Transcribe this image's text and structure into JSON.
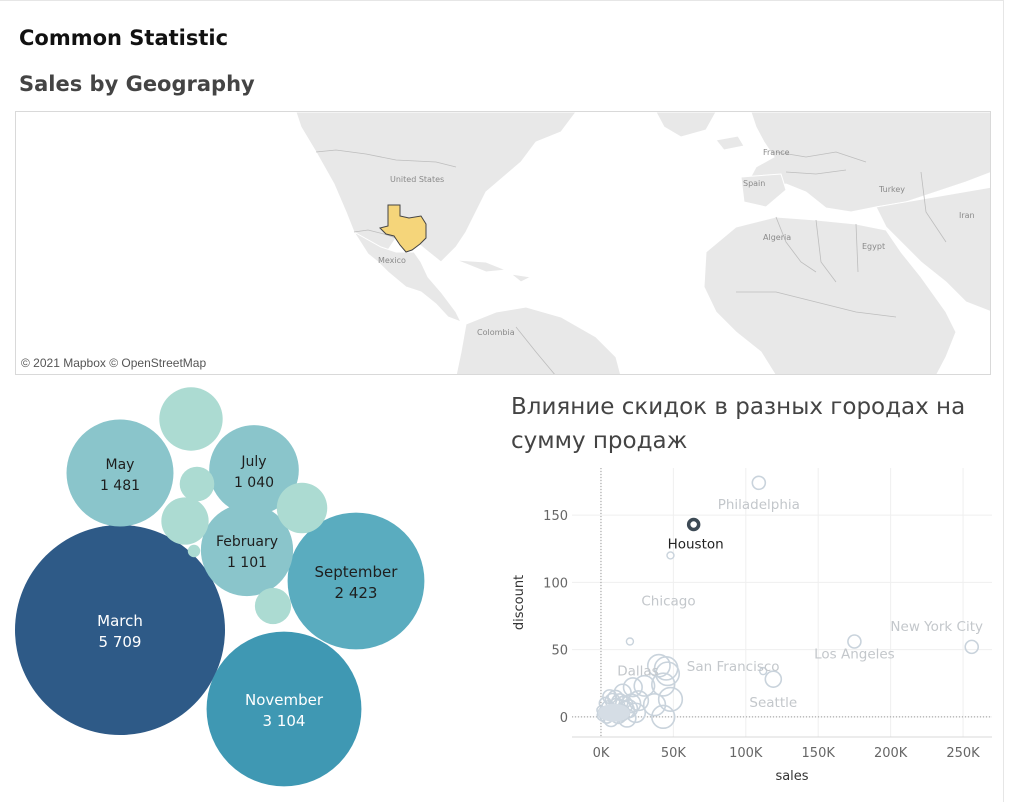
{
  "dashboard": {
    "title": "Common Statistic"
  },
  "map": {
    "title": "Sales by Geography",
    "attribution": "© 2021 Mapbox © OpenStreetMap",
    "highlight_color": "#f5d57a",
    "labels": [
      "United States",
      "Mexico",
      "Colombia",
      "France",
      "Spain",
      "Algeria",
      "Egypt",
      "Turkey",
      "Iran"
    ]
  },
  "chart_data": [
    {
      "type": "bubble",
      "title": "",
      "series": [
        {
          "name": "March",
          "value": 5709,
          "display": "5 709",
          "color": "#2e5a87"
        },
        {
          "name": "November",
          "value": 3104,
          "display": "3 104",
          "color": "#3f98b3"
        },
        {
          "name": "September",
          "value": 2423,
          "display": "2 423",
          "color": "#5aacbf"
        },
        {
          "name": "May",
          "value": 1481,
          "display": "1 481",
          "color": "#8ac5cb"
        },
        {
          "name": "February",
          "value": 1101,
          "display": "1 101",
          "color": "#8ac5cb"
        },
        {
          "name": "July",
          "value": 1040,
          "display": "1 040",
          "color": "#8ac5cb"
        },
        {
          "name": "",
          "value": 520,
          "display": "",
          "color": "#acdbd2"
        },
        {
          "name": "",
          "value": 330,
          "display": "",
          "color": "#acdbd2"
        },
        {
          "name": "",
          "value": 290,
          "display": "",
          "color": "#acdbd2"
        },
        {
          "name": "",
          "value": 170,
          "display": "",
          "color": "#acdbd2"
        },
        {
          "name": "",
          "value": 155,
          "display": "",
          "color": "#acdbd2"
        },
        {
          "name": "",
          "value": 20,
          "display": "",
          "color": "#acdbd2"
        }
      ]
    },
    {
      "type": "scatter",
      "title": "Влияние скидок в разных городах на сумму продаж",
      "xlabel": "sales",
      "ylabel": "discount",
      "xlim": [
        -20000,
        270000
      ],
      "ylim": [
        -15,
        185
      ],
      "xticks": [
        0,
        50000,
        100000,
        150000,
        200000,
        250000
      ],
      "xtick_labels": [
        "0K",
        "50K",
        "100K",
        "150K",
        "200K",
        "250K"
      ],
      "yticks": [
        0,
        50,
        100,
        150
      ],
      "ytick_labels": [
        "0",
        "50",
        "100",
        "150"
      ],
      "grid": true,
      "highlight": "Houston",
      "point_color": "#c9d3dc",
      "highlight_color": "#3d4a55",
      "labeled_points": [
        {
          "city": "Philadelphia",
          "x": 109000,
          "y": 174
        },
        {
          "city": "Houston",
          "x": 64000,
          "y": 143
        },
        {
          "city": "Chicago",
          "x": 48000,
          "y": 120
        },
        {
          "city": "New York City",
          "x": 256000,
          "y": 52
        },
        {
          "city": "Los Angeles",
          "x": 175000,
          "y": 56
        },
        {
          "city": "San Francisco",
          "x": 112000,
          "y": 34
        },
        {
          "city": "Seattle",
          "x": 119000,
          "y": 28
        },
        {
          "city": "Dallas",
          "x": 20000,
          "y": 56
        }
      ],
      "points": [
        {
          "x": 45000,
          "y": 36
        },
        {
          "x": 40000,
          "y": 38
        },
        {
          "x": 46000,
          "y": 32
        },
        {
          "x": 22000,
          "y": 22
        },
        {
          "x": 30000,
          "y": 23
        },
        {
          "x": 43000,
          "y": 24
        },
        {
          "x": 48000,
          "y": 13
        },
        {
          "x": 26000,
          "y": 12
        },
        {
          "x": 37000,
          "y": 9
        },
        {
          "x": 43000,
          "y": 0
        },
        {
          "x": 24000,
          "y": 3
        },
        {
          "x": 15000,
          "y": 18
        },
        {
          "x": 17000,
          "y": 5
        },
        {
          "x": 8000,
          "y": 12
        },
        {
          "x": 12000,
          "y": 1
        },
        {
          "x": 2000,
          "y": 3
        },
        {
          "x": 5000,
          "y": 7
        },
        {
          "x": 4000,
          "y": 0
        },
        {
          "x": 7000,
          "y": -2
        },
        {
          "x": 9000,
          "y": 4
        },
        {
          "x": 11000,
          "y": 8
        },
        {
          "x": 14000,
          "y": 3
        },
        {
          "x": 18000,
          "y": -1
        },
        {
          "x": 3000,
          "y": 10
        },
        {
          "x": 6000,
          "y": 15
        },
        {
          "x": 10000,
          "y": 14
        },
        {
          "x": 1000,
          "y": 1
        },
        {
          "x": 13000,
          "y": 11
        },
        {
          "x": 16000,
          "y": 9
        },
        {
          "x": 19000,
          "y": 6
        },
        {
          "x": 0,
          "y": 5
        },
        {
          "x": 21000,
          "y": 10
        }
      ]
    }
  ]
}
